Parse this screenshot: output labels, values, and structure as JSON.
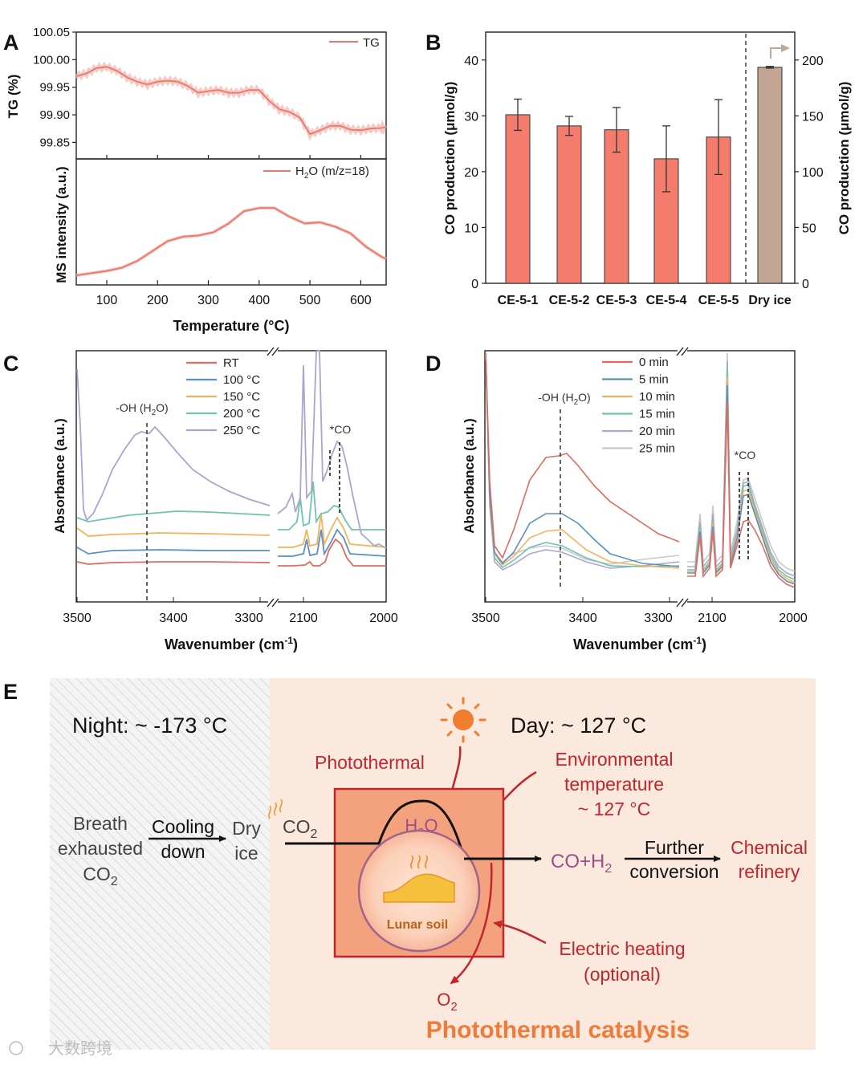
{
  "panels": {
    "A": {
      "letter": "A",
      "xlabel": "Temperature (°C)",
      "xlim": [
        40,
        650
      ],
      "xticks": [
        100,
        200,
        300,
        400,
        500,
        600
      ],
      "top": {
        "ylabel": "TG (%)",
        "ylim": [
          99.82,
          100.05
        ],
        "yticks": [
          "100.05",
          "100.00",
          "99.95",
          "99.90",
          "99.85"
        ],
        "ytick_values": [
          100.05,
          100.0,
          99.95,
          99.9,
          99.85
        ],
        "legend": "TG",
        "color": "#e8786c",
        "raw_color": "#f3b8b0",
        "x": [
          40,
          60,
          80,
          100,
          120,
          140,
          160,
          180,
          200,
          220,
          240,
          260,
          280,
          300,
          320,
          340,
          360,
          380,
          400,
          420,
          440,
          460,
          480,
          500,
          520,
          540,
          560,
          580,
          600,
          620,
          640,
          650
        ],
        "y": [
          99.97,
          99.975,
          99.985,
          99.987,
          99.98,
          99.968,
          99.96,
          99.955,
          99.96,
          99.962,
          99.96,
          99.952,
          99.94,
          99.943,
          99.945,
          99.94,
          99.94,
          99.945,
          99.945,
          99.925,
          99.91,
          99.905,
          99.895,
          99.865,
          99.872,
          99.88,
          99.88,
          99.873,
          99.872,
          99.875,
          99.876,
          99.878
        ]
      },
      "bottom": {
        "ylabel": "MS intensity (a.u.)",
        "legend_main": "H",
        "legend_sub": "2",
        "legend_rest": "O (m/z=18)",
        "color": "#e8786c",
        "x": [
          40,
          70,
          100,
          130,
          160,
          190,
          220,
          250,
          280,
          310,
          340,
          370,
          400,
          430,
          460,
          490,
          520,
          550,
          580,
          610,
          640,
          650
        ],
        "y": [
          0.05,
          0.07,
          0.09,
          0.12,
          0.18,
          0.27,
          0.36,
          0.4,
          0.41,
          0.44,
          0.52,
          0.63,
          0.66,
          0.66,
          0.58,
          0.52,
          0.53,
          0.49,
          0.43,
          0.31,
          0.22,
          0.2
        ]
      }
    },
    "B": {
      "letter": "B",
      "ylabel_left": "CO production (μmol/g)",
      "ylabel_right": "CO production (μmol/g)",
      "chart_data": {
        "type": "bar",
        "categories": [
          "CE-5-1",
          "CE-5-2",
          "CE-5-3",
          "CE-5-4",
          "CE-5-5",
          "Dry ice"
        ],
        "values": [
          30.2,
          28.2,
          27.5,
          22.3,
          26.2,
          193.5
        ],
        "errors": [
          2.8,
          1.7,
          4.0,
          5.9,
          6.7,
          0.8
        ],
        "axis": [
          "left",
          "left",
          "left",
          "left",
          "left",
          "right"
        ],
        "colors": [
          "#f47c6c",
          "#f47c6c",
          "#f47c6c",
          "#f47c6c",
          "#f47c6c",
          "#c2a592"
        ],
        "ylim_left": [
          0,
          45
        ],
        "ylim_right": [
          0,
          225
        ],
        "yticks_left": [
          "0",
          "10",
          "20",
          "30",
          "40"
        ],
        "yticks_right": [
          "0",
          "50",
          "100",
          "150",
          "200"
        ],
        "ytick_left_values": [
          0,
          10,
          20,
          30,
          40
        ],
        "ytick_right_values": [
          0,
          50,
          100,
          150,
          200
        ]
      }
    },
    "C": {
      "letter": "C",
      "xlabel_main": "Wavenumber (cm",
      "xlabel_sup": "-1",
      "xlabel_close": ")",
      "ylabel": "Absorbance (a.u.)",
      "xticks_left": [
        "3500",
        "3400",
        "3300"
      ],
      "xticks_right": [
        "2100",
        "2000"
      ],
      "annotation_oh": "-OH (H",
      "annotation_oh_sub": "2",
      "annotation_oh_close": "O)",
      "annotation_co": "*CO",
      "legend": [
        {
          "label": "RT",
          "color": "#e06a5f"
        },
        {
          "label": "100 °C",
          "color": "#5c8fbf"
        },
        {
          "label": "150 °C",
          "color": "#f0b45c"
        },
        {
          "label": "200 °C",
          "color": "#6fc4b1"
        },
        {
          "label": "250 °C",
          "color": "#a9a6cf"
        }
      ]
    },
    "D": {
      "letter": "D",
      "xlabel_main": "Wavenumber (cm",
      "xlabel_sup": "-1",
      "xlabel_close": ")",
      "ylabel": "Absorbance (a.u.)",
      "xticks_left": [
        "3500",
        "3400",
        "3300"
      ],
      "xticks_right": [
        "2100",
        "2000"
      ],
      "annotation_oh": "-OH (H",
      "annotation_oh_sub": "2",
      "annotation_oh_close": "O)",
      "annotation_co": "*CO",
      "legend": [
        {
          "label": "0 min",
          "color": "#e06a5f"
        },
        {
          "label": "5 min",
          "color": "#5c8fbf"
        },
        {
          "label": "10 min",
          "color": "#f0b45c"
        },
        {
          "label": "15 min",
          "color": "#6fc4b1"
        },
        {
          "label": "20 min",
          "color": "#a9a6cf"
        },
        {
          "label": "25 min",
          "color": "#c8c8c8"
        }
      ]
    },
    "E": {
      "letter": "E",
      "night": "Night: ~ -173 °C",
      "day": "Day: ~ 127 °C",
      "breath_1": "Breath",
      "breath_2": "exhausted",
      "breath_3": "CO",
      "breath_3_sub": "2",
      "cooling_1": "Cooling",
      "cooling_2": "down",
      "dry_1": "Dry",
      "dry_2": "ice",
      "co2": "CO",
      "co2_sub": "2",
      "photothermal": "Photothermal",
      "env_1": "Environmental",
      "env_2": "temperature",
      "env_3": "~ 127 °C",
      "h2o": "H",
      "h2o_sub": "2",
      "h2o_rest": "O",
      "lunar": "Lunar soil",
      "coh2": "CO+H",
      "coh2_sub": "2",
      "further_1": "Further",
      "further_2": "conversion",
      "chem_1": "Chemical",
      "chem_2": "refinery",
      "electric_1": "Electric heating",
      "electric_2": "(optional)",
      "o2": "O",
      "o2_sub": "2",
      "catalysis": "Photothermal catalysis",
      "watermark": "大数跨境"
    }
  }
}
